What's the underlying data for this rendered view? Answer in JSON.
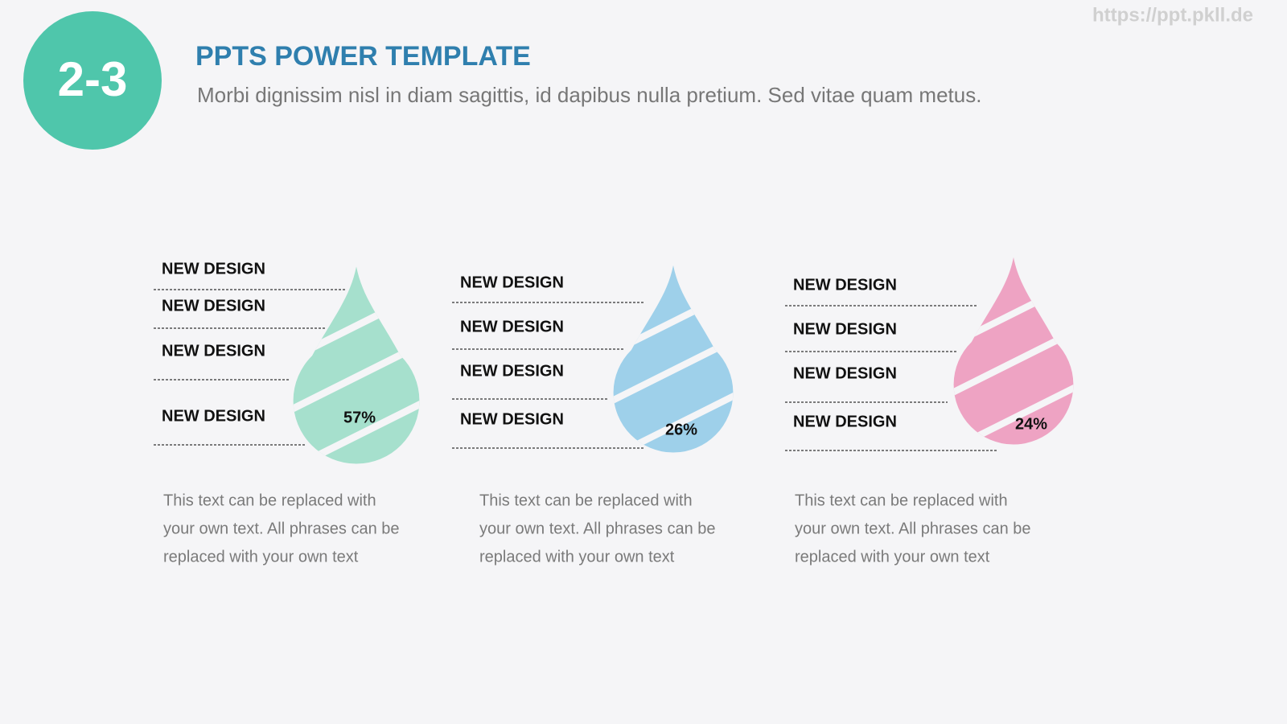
{
  "header": {
    "badge": "2-3",
    "title": "PPTS POWER TEMPLATE",
    "subtitle": "Morbi dignissim nisl in diam sagittis, id dapibus nulla pretium. Sed vitae quam metus.",
    "watermark": "https://ppt.pkll.de"
  },
  "panels": [
    {
      "labels": [
        "NEW DESIGN",
        "NEW DESIGN",
        "NEW DESIGN",
        "NEW DESIGN"
      ],
      "percent": "57%",
      "description": [
        "This text can be replaced with",
        "your own text. All phrases can be",
        "replaced with your own text"
      ]
    },
    {
      "labels": [
        "NEW DESIGN",
        "NEW DESIGN",
        "NEW DESIGN",
        "NEW DESIGN"
      ],
      "percent": "26%",
      "description": [
        "This text can be replaced with",
        "your own text. All phrases can be",
        "replaced with your own text"
      ]
    },
    {
      "labels": [
        "NEW DESIGN",
        "NEW DESIGN",
        "NEW DESIGN",
        "NEW DESIGN"
      ],
      "percent": "24%",
      "description": [
        "This text can be replaced with",
        "your own text. All phrases can be",
        "replaced with your own text"
      ]
    }
  ]
}
